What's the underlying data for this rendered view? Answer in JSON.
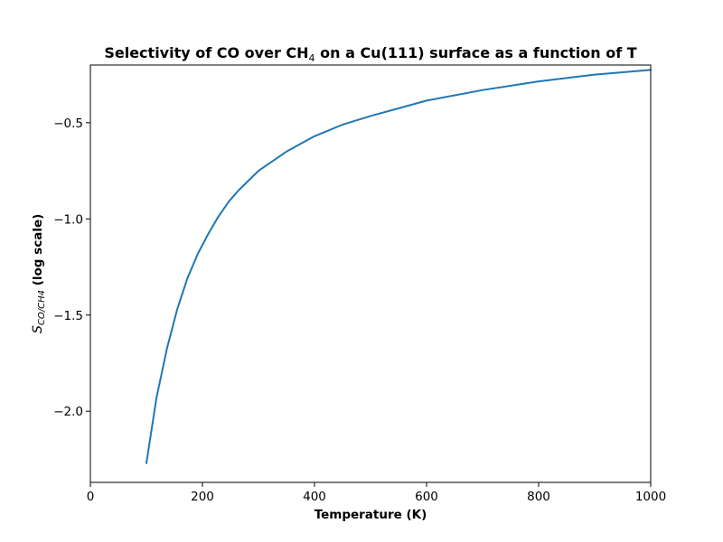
{
  "chart_data": {
    "type": "line",
    "title": {
      "prefix": "Selectivity of CO over CH",
      "sub": "4",
      "suffix": " on a Cu(111) surface as a function of T"
    },
    "xlabel": "Temperature (K)",
    "ylabel": {
      "symbol": "S",
      "sub": "CO/CH4",
      "suffix": " (log scale)"
    },
    "xlim": [
      0,
      1000
    ],
    "ylim": [
      -2.37,
      -0.2
    ],
    "xticks": [
      0,
      200,
      400,
      600,
      800,
      1000
    ],
    "yticks": [
      -2.0,
      -1.5,
      -1.0,
      -0.5
    ],
    "ytick_labels": [
      "−2.0",
      "−1.5",
      "−1.0",
      "−0.5"
    ],
    "grid": false,
    "series": [
      {
        "color": "#1f77b4",
        "x": [
          100,
          118,
          137,
          155,
          173,
          192,
          210,
          228,
          247,
          265,
          300,
          350,
          400,
          450,
          500,
          600,
          700,
          800,
          900,
          1000
        ],
        "y": [
          -2.27,
          -1.93,
          -1.67,
          -1.47,
          -1.31,
          -1.18,
          -1.08,
          -0.99,
          -0.91,
          -0.85,
          -0.75,
          -0.65,
          -0.57,
          -0.51,
          -0.465,
          -0.385,
          -0.33,
          -0.285,
          -0.25,
          -0.225
        ]
      }
    ]
  }
}
